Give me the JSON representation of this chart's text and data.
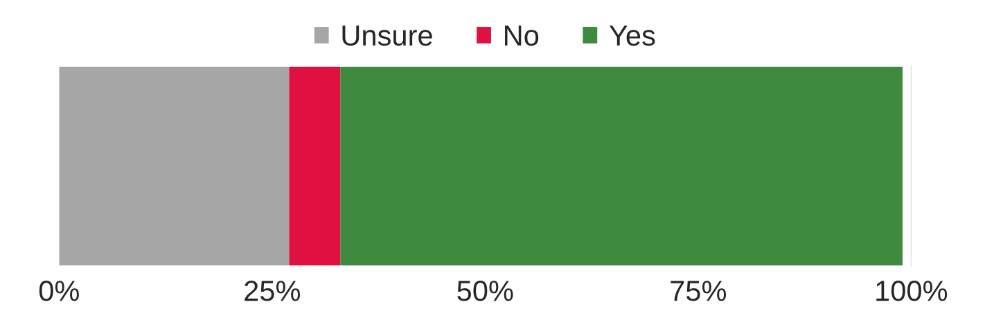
{
  "chart_data": {
    "type": "bar",
    "orientation": "horizontal",
    "stacked": true,
    "categories": [
      null
    ],
    "series": [
      {
        "name": "Unsure",
        "color": "#a6a6a6",
        "values": [
          27
        ]
      },
      {
        "name": "No",
        "color": "#e01040",
        "values": [
          6
        ]
      },
      {
        "name": "Yes",
        "color": "#3f8a3f",
        "values": [
          66
        ]
      }
    ],
    "xlim": [
      0,
      100
    ],
    "xticks": [
      {
        "value": 0,
        "label": "0%"
      },
      {
        "value": 25,
        "label": "25%"
      },
      {
        "value": 50,
        "label": "50%"
      },
      {
        "value": 75,
        "label": "75%"
      },
      {
        "value": 100,
        "label": "100%"
      }
    ],
    "tick_labels": "x",
    "grid": false,
    "legend": "top"
  }
}
